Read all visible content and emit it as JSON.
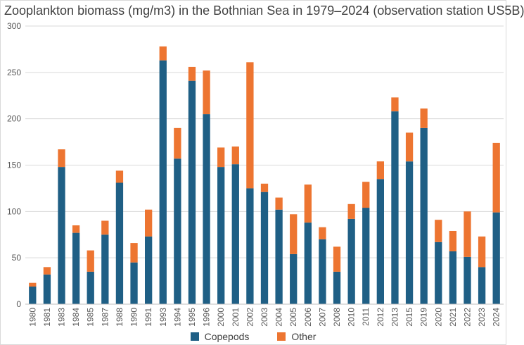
{
  "title": "Zooplankton biomass (mg/m3) in the Bothnian Sea in 1979–2024 (observation station US5B)",
  "chart_data": {
    "type": "bar",
    "stacked": true,
    "title": "Zooplankton biomass (mg/m3) in the Bothnian Sea in 1979–2024 (observation station US5B)",
    "xlabel": "",
    "ylabel": "",
    "ylim": [
      0,
      300
    ],
    "yticks": [
      0,
      50,
      100,
      150,
      200,
      250,
      300
    ],
    "grid": true,
    "legend_position": "bottom",
    "categories": [
      "1980",
      "1981",
      "1983",
      "1984",
      "1985",
      "1987",
      "1988",
      "1990",
      "1991",
      "1993",
      "1994",
      "1995",
      "1996",
      "2000",
      "2001",
      "2002",
      "2003",
      "2004",
      "2005",
      "2006",
      "2007",
      "2008",
      "2010",
      "2011",
      "2012",
      "2013",
      "2015",
      "2019",
      "2020",
      "2021",
      "2022",
      "2023",
      "2024"
    ],
    "series": [
      {
        "name": "Copepods",
        "color": "#1f5f85",
        "values": [
          19,
          32,
          148,
          77,
          35,
          75,
          131,
          45,
          73,
          263,
          157,
          241,
          205,
          148,
          151,
          125,
          121,
          102,
          54,
          88,
          70,
          35,
          92,
          104,
          135,
          208,
          154,
          190,
          67,
          57,
          51,
          40,
          99
        ]
      },
      {
        "name": "Other",
        "color": "#ed7531",
        "values": [
          4,
          8,
          19,
          8,
          23,
          15,
          13,
          21,
          29,
          15,
          33,
          15,
          47,
          21,
          19,
          136,
          9,
          13,
          43,
          41,
          13,
          27,
          16,
          28,
          19,
          15,
          31,
          21,
          24,
          22,
          49,
          33,
          75
        ]
      }
    ]
  }
}
